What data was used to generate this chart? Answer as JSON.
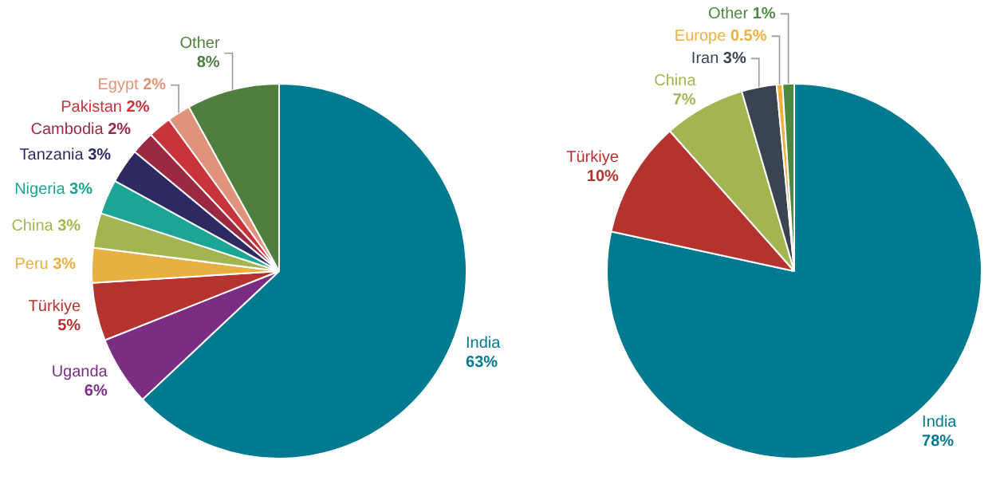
{
  "chart_data": [
    {
      "type": "pie",
      "categories": [
        "India",
        "Uganda",
        "Türkiye",
        "Peru",
        "China",
        "Nigeria",
        "Tanzania",
        "Cambodia",
        "Pakistan",
        "Egypt",
        "Other"
      ],
      "values": [
        63,
        6,
        5,
        3,
        3,
        3,
        3,
        2,
        2,
        2,
        8
      ],
      "value_labels": [
        "63%",
        "6%",
        "5%",
        "3%",
        "3%",
        "3%",
        "3%",
        "2%",
        "2%",
        "2%",
        "8%"
      ],
      "colors": [
        "#007a8e",
        "#7b2c83",
        "#b5332e",
        "#e8b040",
        "#a3b550",
        "#1aa595",
        "#2d2a63",
        "#9b2942",
        "#c8343a",
        "#e0927a",
        "#4e7f3e"
      ],
      "legend": false
    },
    {
      "type": "pie",
      "categories": [
        "India",
        "Türkiye",
        "China",
        "Iran",
        "Europe",
        "Other"
      ],
      "values": [
        78,
        10,
        7,
        3,
        0.5,
        1
      ],
      "value_labels": [
        "78%",
        "10%",
        "7%",
        "3%",
        "0.5%",
        "1%"
      ],
      "colors": [
        "#007a8e",
        "#b5332e",
        "#a3b550",
        "#3a4450",
        "#f0b040",
        "#4e8a3e"
      ],
      "legend": false
    }
  ]
}
